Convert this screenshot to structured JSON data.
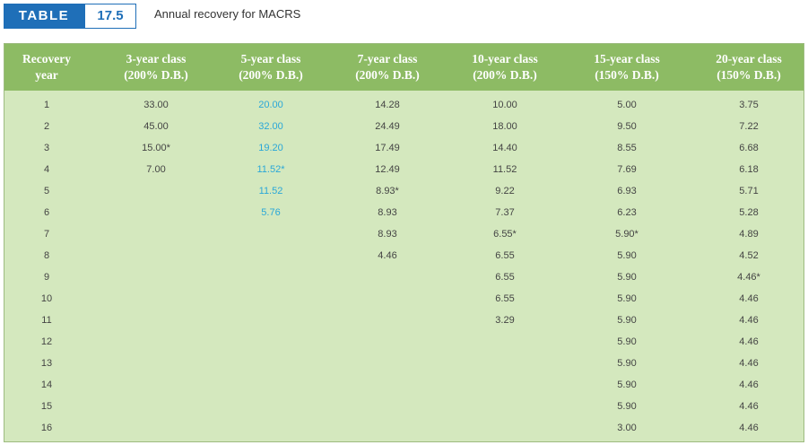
{
  "caption": {
    "tag_word": "TABLE",
    "tag_number": "17.5",
    "title": "Annual recovery for MACRS"
  },
  "header": [
    {
      "line1": "Recovery",
      "line2": "year"
    },
    {
      "line1": "3-year class",
      "line2": "(200% D.B.)"
    },
    {
      "line1": "5-year class",
      "line2": "(200% D.B.)"
    },
    {
      "line1": "7-year class",
      "line2": "(200% D.B.)"
    },
    {
      "line1": "10-year class",
      "line2": "(200% D.B.)"
    },
    {
      "line1": "15-year class",
      "line2": "(150% D.B.)"
    },
    {
      "line1": "20-year class",
      "line2": "(150% D.B.)"
    }
  ],
  "rows": [
    [
      "1",
      "33.00",
      "20.00",
      "14.28",
      "10.00",
      "5.00",
      "3.75"
    ],
    [
      "2",
      "45.00",
      "32.00",
      "24.49",
      "18.00",
      "9.50",
      "7.22"
    ],
    [
      "3",
      "15.00*",
      "19.20",
      "17.49",
      "14.40",
      "8.55",
      "6.68"
    ],
    [
      "4",
      "7.00",
      "11.52*",
      "12.49",
      "11.52",
      "7.69",
      "6.18"
    ],
    [
      "5",
      "",
      "11.52",
      "8.93*",
      "9.22",
      "6.93",
      "5.71"
    ],
    [
      "6",
      "",
      "5.76",
      "8.93",
      "7.37",
      "6.23",
      "5.28"
    ],
    [
      "7",
      "",
      "",
      "8.93",
      "6.55*",
      "5.90*",
      "4.89"
    ],
    [
      "8",
      "",
      "",
      "4.46",
      "6.55",
      "5.90",
      "4.52"
    ],
    [
      "9",
      "",
      "",
      "",
      "6.55",
      "5.90",
      "4.46*"
    ],
    [
      "10",
      "",
      "",
      "",
      "6.55",
      "5.90",
      "4.46"
    ],
    [
      "11",
      "",
      "",
      "",
      "3.29",
      "5.90",
      "4.46"
    ],
    [
      "12",
      "",
      "",
      "",
      "",
      "5.90",
      "4.46"
    ],
    [
      "13",
      "",
      "",
      "",
      "",
      "5.90",
      "4.46"
    ],
    [
      "14",
      "",
      "",
      "",
      "",
      "5.90",
      "4.46"
    ],
    [
      "15",
      "",
      "",
      "",
      "",
      "5.90",
      "4.46"
    ],
    [
      "16",
      "",
      "",
      "",
      "",
      "3.00",
      "4.46"
    ]
  ],
  "colors": {
    "tag_blue": "#1f6fb8",
    "header_green": "#8dbb64",
    "body_green": "#d4e8be",
    "highlight_blue": "#2aa7d8"
  }
}
